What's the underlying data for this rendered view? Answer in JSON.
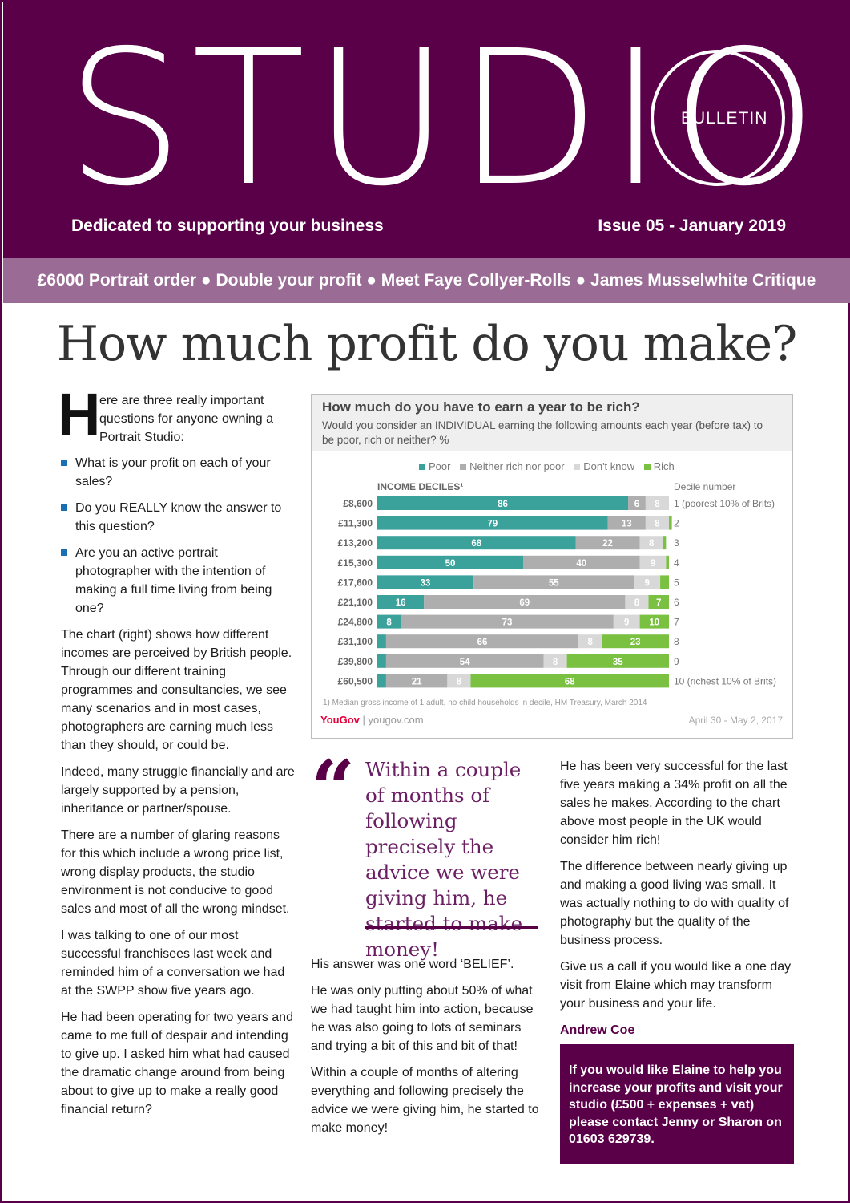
{
  "masthead": {
    "title": "STUDIO",
    "bulletin": "BULLETIN",
    "tagline": "Dedicated to supporting your business",
    "issue": "Issue 05 - January 2019",
    "brand_color": "#5a0048"
  },
  "banner": {
    "text": "£6000 Portrait order ● Double your profit ● Meet Faye Collyer-Rolls ● James Musselwhite Critique",
    "color": "#9a6b94"
  },
  "headline": "How much profit do you make?",
  "left_column": {
    "dropcap": "H",
    "intro": "ere are three really important questions for anyone owning a Portrait Studio:",
    "bullets": [
      "What is your profit on each of your sales?",
      "Do you REALLY know the answer to this question?",
      "Are you an active portrait photographer with the intention of making a full time living from being one?"
    ],
    "paragraphs": [
      "The chart (right) shows how different incomes are perceived by British people. Through our different training programmes and consultancies, we see many scenarios and in most cases, photographers are earning much less than they should, or could be.",
      "Indeed, many struggle financially and are largely supported by a pension, inheritance or partner/spouse.",
      "There are a number of glaring reasons for this which include a wrong price list, wrong display products, the studio environment is not conducive to good sales and most of all the wrong mindset.",
      "I was talking to one of our most successful franchisees last week and reminded him of a conversation we had at the SWPP show five years ago.",
      "He had been operating for two years and came to me full of despair and intending to give up. I asked him what had caused the dramatic change around from being about to give up to make a really good financial return?"
    ]
  },
  "chart_data": {
    "type": "bar",
    "stacked": true,
    "orientation": "horizontal",
    "title": "How much do you have to earn a year to be rich?",
    "subtitle": "Would you consider an INDIVIDUAL earning the following amounts each year (before tax) to be poor, rich or neither? %",
    "y_header": "INCOME DECILES¹",
    "right_header": "Decile number",
    "categories": [
      "£8,600",
      "£11,300",
      "£13,200",
      "£15,300",
      "£17,600",
      "£21,100",
      "£24,800",
      "£31,100",
      "£39,800",
      "£60,500"
    ],
    "decile_labels": [
      "1 (poorest 10% of Brits)",
      "2",
      "3",
      "4",
      "5",
      "6",
      "7",
      "8",
      "9",
      "10 (richest 10% of Brits)"
    ],
    "series": [
      {
        "name": "Poor",
        "color": "#3aa19b",
        "values": [
          86,
          79,
          68,
          50,
          33,
          16,
          8,
          3,
          3,
          3
        ]
      },
      {
        "name": "Neither rich nor poor",
        "color": "#aeaeae",
        "values": [
          6,
          13,
          22,
          40,
          55,
          69,
          73,
          66,
          54,
          21
        ]
      },
      {
        "name": "Don't know",
        "color": "#d8d8d8",
        "values": [
          8,
          8,
          8,
          9,
          9,
          8,
          9,
          8,
          8,
          8
        ]
      },
      {
        "name": "Rich",
        "color": "#7ac142",
        "values": [
          0,
          1,
          1,
          1,
          3,
          7,
          10,
          23,
          35,
          68
        ]
      }
    ],
    "shown_labels": [
      [
        "86",
        "79",
        "68",
        "50",
        "33",
        "16",
        "8",
        "",
        "",
        ""
      ],
      [
        "6",
        "13",
        "22",
        "40",
        "55",
        "69",
        "73",
        "66",
        "54",
        "21"
      ],
      [
        "8",
        "8",
        "8",
        "9",
        "9",
        "8",
        "9",
        "8",
        "8",
        "8"
      ],
      [
        "",
        "",
        "",
        "",
        "",
        "7",
        "10",
        "23",
        "35",
        "68"
      ]
    ],
    "xlim": [
      0,
      100
    ],
    "footnote": "1) Median gross income of 1 adult, no child households in decile, HM Treasury, March 2014",
    "source_brand": "YouGov",
    "source_url": "yougov.com",
    "date": "April 30 - May 2, 2017"
  },
  "quote": {
    "mark": "“",
    "text": "Within a couple of months of following precisely the advice we were giving him, he started to make money!"
  },
  "middle_column": {
    "paragraphs": [
      "His answer was one word ‘BELIEF’.",
      "He was only putting about 50% of what we had taught him into action, because he was also going to lots of seminars and trying a bit of this and bit of that!",
      "Within a couple of months of altering everything and following precisely the advice we were giving him, he started to make money!"
    ]
  },
  "right_column": {
    "paragraphs": [
      "He has been very successful for the last five years making a 34% profit on all the sales he makes. According to the chart above most people in the UK would consider him rich!",
      "The difference between nearly giving up and making a good living was small. It was actually nothing to do with quality of photography but the quality of the business process.",
      "Give us a call if you would like a one day visit from Elaine which may transform your business and your life."
    ],
    "author": "Andrew Coe"
  },
  "cta": {
    "text": "If you would like Elaine to help you increase your profits and visit your studio (£500 + expenses  + vat) please contact Jenny or Sharon on 01603 629739."
  }
}
